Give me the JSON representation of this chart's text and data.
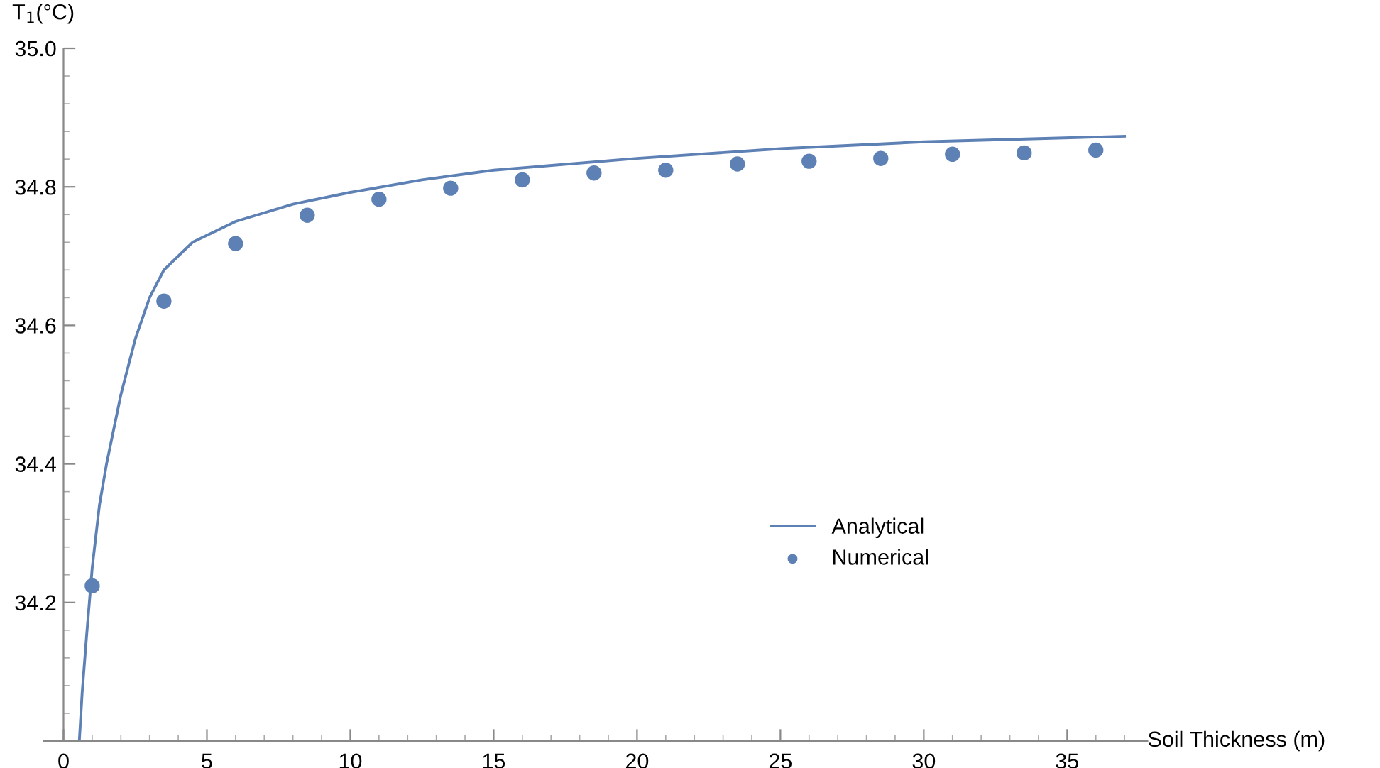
{
  "chart_data": {
    "type": "line",
    "xlabel": "Soil Thickness (m)",
    "ylabel": "T$_{1}$(°C)",
    "xlim": [
      -0.7,
      37.8
    ],
    "ylim": [
      34.0,
      35.0
    ],
    "xticks": [
      0,
      5,
      10,
      15,
      20,
      25,
      30,
      35
    ],
    "yticks": [
      34.2,
      34.4,
      34.6,
      34.8,
      {
        "value": 35.0,
        "label": "35.0"
      }
    ],
    "grid": false,
    "legend": "lower right",
    "series": [
      {
        "name": "Analytical",
        "color": "#5e81b5",
        "marker": "none",
        "line_style": "solid",
        "x": [
          0.55,
          0.65,
          0.8,
          1.0,
          1.25,
          1.5,
          2.0,
          2.5,
          3.0,
          3.5,
          4.5,
          6,
          8,
          10,
          12.5,
          15,
          20,
          25,
          30,
          37
        ],
        "values": [
          34.0,
          34.07,
          34.15,
          34.25,
          34.34,
          34.4,
          34.5,
          34.58,
          34.64,
          34.68,
          34.72,
          34.75,
          34.775,
          34.792,
          34.81,
          34.824,
          34.841,
          34.855,
          34.865,
          34.873
        ]
      },
      {
        "name": "Numerical",
        "type": "scatter",
        "color": "#5e81b5",
        "marker": "circle",
        "x": [
          1,
          3.5,
          6,
          8.5,
          11,
          13.5,
          16,
          18.5,
          21,
          23.5,
          26,
          28.5,
          31,
          33.5,
          36
        ],
        "values": [
          34.224,
          34.635,
          34.718,
          34.759,
          34.782,
          34.798,
          34.81,
          34.82,
          34.824,
          34.833,
          34.837,
          34.841,
          34.847,
          34.849,
          34.853
        ]
      }
    ]
  }
}
